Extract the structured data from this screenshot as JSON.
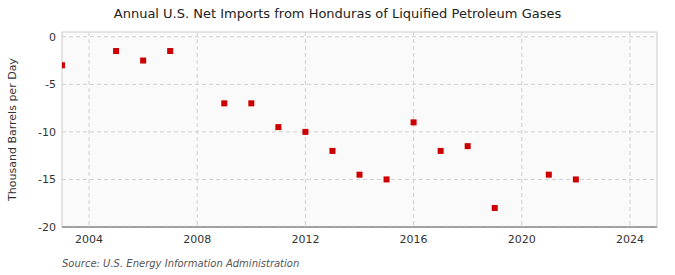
{
  "chart_data": {
    "type": "scatter",
    "title": "Annual U.S. Net Imports from Honduras of Liquified Petroleum Gases",
    "y_label": "Thousand Barrels per Day",
    "source": "Source: U.S. Energy Information Administration",
    "x": [
      2003,
      2005,
      2006,
      2007,
      2009,
      2010,
      2011,
      2012,
      2013,
      2014,
      2015,
      2016,
      2017,
      2018,
      2019,
      2021,
      2022
    ],
    "values": [
      -3.0,
      -1.5,
      -2.5,
      -1.5,
      -7.0,
      -7.0,
      -9.5,
      -10.0,
      -12.0,
      -14.5,
      -15.0,
      -9.0,
      -12.0,
      -11.5,
      -18.0,
      -14.5,
      -15.0
    ],
    "color": "#cc0000",
    "marker": "square",
    "xlim": [
      2003,
      2025
    ],
    "ylim": [
      -20,
      0.5
    ],
    "xticks": [
      2004,
      2008,
      2012,
      2016,
      2020,
      2024
    ],
    "yticks": [
      0,
      -5,
      -10,
      -15,
      -20
    ],
    "grid": true
  }
}
